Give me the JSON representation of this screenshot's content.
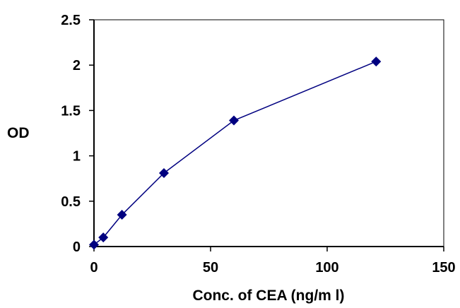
{
  "chart_data": {
    "type": "line",
    "title": "",
    "xlabel": "Conc. of CEA (ng/m l)",
    "ylabel": "OD",
    "xlim": [
      0,
      150
    ],
    "ylim": [
      0,
      2.5
    ],
    "x_ticks": [
      0,
      50,
      100,
      150
    ],
    "y_ticks": [
      0,
      0.5,
      1,
      1.5,
      2,
      2.5
    ],
    "x_tick_labels": [
      "0",
      "50",
      "100",
      "150"
    ],
    "y_tick_labels": [
      "0",
      "0.5",
      "1",
      "1.5",
      "2",
      "2.5"
    ],
    "grid": false,
    "legend": "none",
    "marker": "diamond",
    "series_color": "#000080",
    "series": [
      {
        "x": [
          0,
          4,
          12,
          30,
          60,
          121
        ],
        "y": [
          0.02,
          0.1,
          0.35,
          0.81,
          1.39,
          2.04
        ]
      }
    ]
  }
}
